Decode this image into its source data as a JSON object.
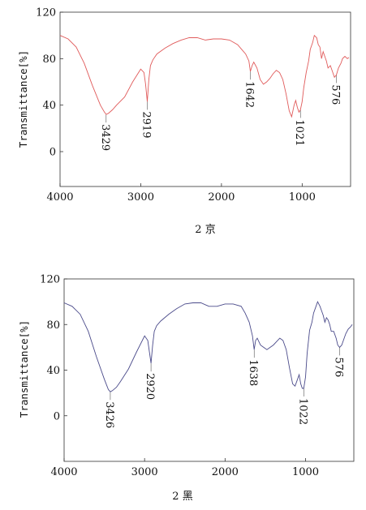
{
  "chart_data": [
    {
      "type": "line",
      "caption": "2 京",
      "ylabel": "Transmittance[%]",
      "xlim": [
        4000,
        400
      ],
      "ylim": [
        -30,
        120
      ],
      "x_ticks": [
        4000,
        3000,
        2000,
        1000
      ],
      "y_ticks": [
        0,
        40,
        80,
        120
      ],
      "line_color": "#e05a5a",
      "series": [
        {
          "x": [
            4000,
            3900,
            3800,
            3700,
            3600,
            3500,
            3450,
            3429,
            3400,
            3350,
            3300,
            3200,
            3100,
            3000,
            2960,
            2940,
            2919,
            2900,
            2880,
            2850,
            2800,
            2700,
            2600,
            2500,
            2400,
            2300,
            2200,
            2100,
            2000,
            1900,
            1800,
            1750,
            1700,
            1660,
            1642,
            1620,
            1600,
            1560,
            1520,
            1480,
            1440,
            1400,
            1360,
            1320,
            1280,
            1240,
            1200,
            1160,
            1130,
            1100,
            1080,
            1060,
            1040,
            1021,
            1000,
            980,
            950,
            920,
            900,
            870,
            850,
            820,
            800,
            780,
            760,
            740,
            720,
            700,
            680,
            650,
            620,
            600,
            576,
            550,
            520,
            500,
            470,
            440,
            420
          ],
          "y": [
            100,
            97,
            90,
            76,
            57,
            40,
            34,
            32,
            33,
            36,
            40,
            47,
            60,
            71,
            68,
            58,
            43,
            62,
            74,
            79,
            84,
            89,
            93,
            96,
            98,
            98,
            96,
            97,
            97,
            96,
            92,
            88,
            84,
            78,
            69,
            74,
            77,
            72,
            62,
            58,
            60,
            63,
            67,
            70,
            68,
            62,
            50,
            35,
            30,
            40,
            44,
            38,
            34,
            36,
            43,
            55,
            68,
            78,
            88,
            94,
            100,
            98,
            92,
            90,
            80,
            86,
            82,
            78,
            72,
            74,
            68,
            64,
            66,
            72,
            76,
            80,
            82,
            80,
            81
          ]
        }
      ],
      "annotations": [
        {
          "x": 3429,
          "label": "3429"
        },
        {
          "x": 2919,
          "label": "2919"
        },
        {
          "x": 1642,
          "label": "1642"
        },
        {
          "x": 1021,
          "label": "1021"
        },
        {
          "x": 576,
          "label": "576"
        }
      ]
    },
    {
      "type": "line",
      "caption": "2 黑",
      "ylabel": "Transmittance[%]",
      "xlim": [
        4000,
        400
      ],
      "ylim": [
        -40,
        120
      ],
      "x_ticks": [
        4000,
        3000,
        2000,
        1000
      ],
      "y_ticks": [
        0,
        40,
        80,
        120
      ],
      "line_color": "#4a4a8a",
      "series": [
        {
          "x": [
            4000,
            3900,
            3800,
            3700,
            3600,
            3500,
            3450,
            3426,
            3400,
            3350,
            3300,
            3200,
            3100,
            3000,
            2960,
            2940,
            2920,
            2900,
            2880,
            2850,
            2800,
            2700,
            2600,
            2500,
            2400,
            2300,
            2200,
            2100,
            2000,
            1900,
            1800,
            1750,
            1700,
            1660,
            1638,
            1620,
            1600,
            1560,
            1520,
            1480,
            1440,
            1400,
            1360,
            1320,
            1280,
            1240,
            1200,
            1160,
            1130,
            1100,
            1080,
            1060,
            1040,
            1022,
            1000,
            980,
            950,
            920,
            900,
            870,
            850,
            820,
            800,
            780,
            760,
            740,
            720,
            700,
            680,
            650,
            620,
            600,
            576,
            550,
            520,
            500,
            470,
            440,
            420
          ],
          "y": [
            99,
            96,
            89,
            74,
            52,
            32,
            23,
            21,
            22,
            25,
            30,
            41,
            56,
            70,
            66,
            56,
            46,
            62,
            74,
            79,
            83,
            89,
            94,
            98,
            99,
            99,
            96,
            96,
            98,
            98,
            96,
            90,
            82,
            70,
            58,
            66,
            68,
            62,
            60,
            58,
            60,
            62,
            65,
            68,
            66,
            58,
            42,
            28,
            26,
            32,
            36,
            28,
            24,
            24,
            34,
            55,
            75,
            82,
            90,
            96,
            100,
            96,
            92,
            88,
            82,
            86,
            84,
            80,
            74,
            74,
            68,
            62,
            60,
            62,
            68,
            72,
            76,
            78,
            80
          ]
        }
      ],
      "annotations": [
        {
          "x": 3426,
          "label": "3426"
        },
        {
          "x": 2920,
          "label": "2920"
        },
        {
          "x": 1638,
          "label": "1638"
        },
        {
          "x": 1022,
          "label": "1022"
        },
        {
          "x": 576,
          "label": "576"
        }
      ]
    }
  ]
}
